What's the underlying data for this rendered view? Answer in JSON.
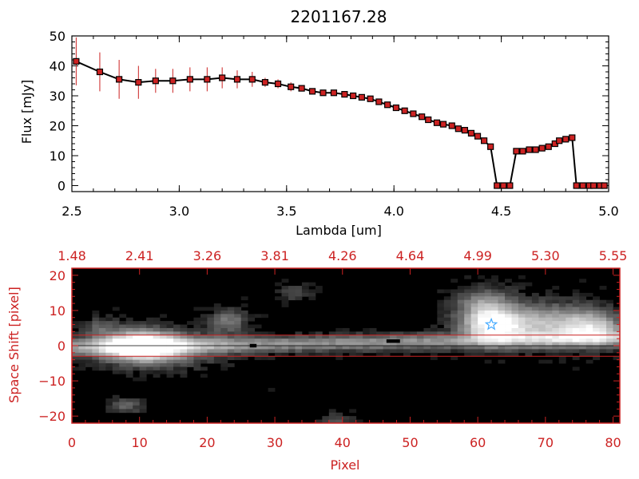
{
  "chart_data": [
    {
      "type": "line",
      "title": "2201167.28",
      "xlabel": "Lambda [um]",
      "ylabel": "Flux [mJy]",
      "xlim": [
        2.5,
        5.0
      ],
      "ylim": [
        -2,
        50
      ],
      "xticks": [
        {
          "value": 2.5,
          "label": "2.5"
        },
        {
          "value": 3.0,
          "label": "3.0"
        },
        {
          "value": 3.5,
          "label": "3.5"
        },
        {
          "value": 4.0,
          "label": "4.0"
        },
        {
          "value": 4.5,
          "label": "4.5"
        },
        {
          "value": 5.0,
          "label": "5.0"
        }
      ],
      "yticks": [
        {
          "value": 0,
          "label": "0"
        },
        {
          "value": 10,
          "label": "10"
        },
        {
          "value": 20,
          "label": "20"
        },
        {
          "value": 30,
          "label": "30"
        },
        {
          "value": 40,
          "label": "40"
        },
        {
          "value": 50,
          "label": "50"
        }
      ],
      "colors": {
        "line": "#000000",
        "marker": "#cc2222",
        "errorbar": "#cc2222"
      },
      "series": [
        {
          "x": [
            2.52,
            2.63,
            2.72,
            2.81,
            2.89,
            2.97,
            3.05,
            3.13,
            3.2,
            3.27,
            3.34,
            3.4,
            3.46,
            3.52,
            3.57,
            3.62,
            3.67,
            3.72,
            3.77,
            3.81,
            3.85,
            3.89,
            3.93,
            3.97,
            4.01,
            4.05,
            4.09,
            4.13,
            4.16,
            4.2,
            4.23,
            4.27,
            4.3,
            4.33,
            4.36,
            4.39,
            4.42,
            4.45,
            4.48,
            4.51,
            4.54,
            4.57,
            4.6,
            4.63,
            4.66,
            4.69,
            4.72,
            4.75,
            4.77,
            4.8,
            4.83,
            4.85,
            4.88,
            4.91,
            4.93,
            4.96,
            4.98
          ],
          "y": [
            41.5,
            38,
            35.5,
            34.5,
            35,
            35,
            35.5,
            35.5,
            36,
            35.5,
            35.5,
            34.5,
            34,
            33,
            32.5,
            31.5,
            31,
            31,
            30.5,
            30,
            29.5,
            29,
            28,
            27,
            26,
            25,
            24,
            23,
            22,
            21,
            20.5,
            20,
            19,
            18.5,
            17.5,
            16.5,
            15,
            13,
            0,
            0,
            0,
            11.5,
            11.5,
            12,
            12,
            12.5,
            13,
            14,
            15,
            15.5,
            16,
            0,
            0,
            0,
            0,
            0,
            0
          ],
          "yerr": [
            8,
            6.5,
            6.5,
            5.5,
            4,
            4,
            4,
            4,
            3.5,
            3,
            2.5,
            1.5,
            1.5,
            1.5,
            1,
            1,
            1,
            1,
            1,
            1,
            1,
            1,
            1,
            1,
            1,
            1,
            1,
            1,
            1,
            1,
            1,
            1,
            1,
            1,
            1,
            1,
            1,
            1,
            0,
            0,
            0,
            1,
            1,
            1,
            1,
            1,
            1,
            1,
            1,
            1,
            1,
            0,
            0,
            0,
            0,
            0,
            0
          ]
        }
      ]
    },
    {
      "type": "heatmap",
      "xlabel": "Pixel",
      "ylabel": "Space Shift [pixel]",
      "xlim": [
        0,
        81
      ],
      "ylim": [
        -22,
        22
      ],
      "xticks": [
        {
          "value": 0,
          "label": "0"
        },
        {
          "value": 10,
          "label": "10"
        },
        {
          "value": 20,
          "label": "20"
        },
        {
          "value": 30,
          "label": "30"
        },
        {
          "value": 40,
          "label": "40"
        },
        {
          "value": 50,
          "label": "50"
        },
        {
          "value": 60,
          "label": "60"
        },
        {
          "value": 70,
          "label": "70"
        },
        {
          "value": 80,
          "label": "80"
        }
      ],
      "yticks": [
        {
          "value": -20,
          "label": "−20"
        },
        {
          "value": -10,
          "label": "−10"
        },
        {
          "value": 0,
          "label": "0"
        },
        {
          "value": 10,
          "label": "10"
        },
        {
          "value": 20,
          "label": "20"
        }
      ],
      "top_axis": {
        "labels": [
          {
            "value": 0,
            "label": "1.48"
          },
          {
            "value": 10,
            "label": "2.41"
          },
          {
            "value": 20,
            "label": "3.26"
          },
          {
            "value": 30,
            "label": "3.81"
          },
          {
            "value": 40,
            "label": "4.26"
          },
          {
            "value": 50,
            "label": "4.64"
          },
          {
            "value": 60,
            "label": "4.99"
          },
          {
            "value": 70,
            "label": "5.30"
          },
          {
            "value": 80,
            "label": "5.55"
          }
        ]
      },
      "extraction_bounds": [
        -3,
        3
      ],
      "trace_center": 0,
      "target_marker": {
        "x": 62,
        "y": 6,
        "color": "#44aaff"
      },
      "blobs": [
        {
          "x": 10,
          "y": 0,
          "sx": 3.5,
          "sy": 2.8,
          "a": 1.0
        },
        {
          "x": 13,
          "y": -1,
          "sx": 6,
          "sy": 3.5,
          "a": 0.45
        },
        {
          "x": 23,
          "y": 7,
          "sx": 2,
          "sy": 2.2,
          "a": 0.4
        },
        {
          "x": 8,
          "y": -17,
          "sx": 1.5,
          "sy": 1.5,
          "a": 0.35
        },
        {
          "x": 62,
          "y": 6,
          "sx": 3,
          "sy": 3,
          "a": 0.85
        },
        {
          "x": 70,
          "y": 6,
          "sx": 6,
          "sy": 4,
          "a": 0.65
        },
        {
          "x": 61,
          "y": 12,
          "sx": 3,
          "sy": 3,
          "a": 0.45
        },
        {
          "x": 77,
          "y": 5,
          "sx": 3,
          "sy": 3,
          "a": 0.55
        },
        {
          "x": 33,
          "y": 15,
          "sx": 1.5,
          "sy": 1.5,
          "a": 0.25
        },
        {
          "x": 4,
          "y": 5,
          "sx": 2,
          "sy": 2,
          "a": 0.25
        },
        {
          "x": 39,
          "y": -21,
          "sx": 1.5,
          "sy": 1.2,
          "a": 0.25
        }
      ],
      "trace": {
        "x0": 0,
        "x1": 81,
        "y_start": -0.5,
        "y_end": 2,
        "sigma": 1.6,
        "amp": 0.5
      },
      "colors": {
        "axes": "#cc2222",
        "box": "#cc2222",
        "trace_line": "#000000"
      }
    }
  ]
}
